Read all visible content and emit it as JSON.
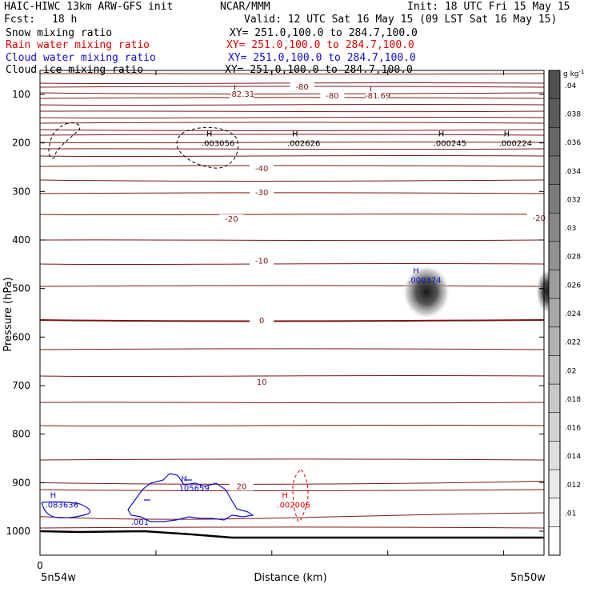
{
  "header": {
    "title_left": "HAIC-HIWC 13km ARW-GFS init",
    "title_mid": "NCAR/MMM",
    "init": "Init: 18 UTC Fri 15 May 15",
    "fcst_label": "Fcst:",
    "fcst_value": "18 h",
    "valid": "Valid: 12 UTC Sat 16 May 15 (09 LST Sat 16 May 15)"
  },
  "fields": [
    {
      "name": "Snow mixing ratio",
      "xy": "XY= 251.0,100.0 to 284.7,100.0",
      "color": "#000000"
    },
    {
      "name": "Rain water mixing ratio",
      "xy": "XY= 251.0,100.0 to 284.7,100.0",
      "color": "#e00000"
    },
    {
      "name": "Cloud water mixing ratio",
      "xy": "XY= 251.0,100.0 to 284.7,100.0",
      "color": "#1010d0"
    },
    {
      "name": "Cloud ice mixing ratio",
      "xy": "XY= 251.0,100.0 to 284.7,100.0",
      "color": "#000000"
    }
  ],
  "axes": {
    "ylabel": "Pressure (hPa)",
    "xlabel": "Distance (km)",
    "x_origin": "0",
    "x_left_label": "5n54w",
    "x_right_label": "5n50w"
  },
  "colorbar": {
    "units": "g kg",
    "units_sup": "-1",
    "ticks": [
      ".04",
      ".038",
      ".036",
      ".034",
      ".032",
      ".03",
      ".028",
      ".026",
      ".024",
      ".022",
      ".02",
      ".018",
      ".016",
      ".014",
      ".012",
      ".01"
    ]
  },
  "chart_data": {
    "type": "contour",
    "ylim": [
      1050,
      70
    ],
    "yticks": [
      100,
      200,
      300,
      400,
      500,
      600,
      700,
      800,
      900,
      1000
    ],
    "temperature_labels": [
      {
        "text": "-80",
        "x": 0.52,
        "p": 87
      },
      {
        "text": "-80",
        "x": 0.58,
        "p": 105
      },
      {
        "text": "-82.31",
        "x": 0.4,
        "p": 102,
        "marker": "L"
      },
      {
        "text": "-81.69",
        "x": 0.67,
        "p": 105,
        "marker": "L"
      },
      {
        "text": "-40",
        "x": 0.44,
        "p": 255
      },
      {
        "text": "-30",
        "x": 0.44,
        "p": 304
      },
      {
        "text": "-20",
        "x": 0.38,
        "p": 359
      },
      {
        "text": "-20",
        "x": 0.99,
        "p": 357
      },
      {
        "text": "-10",
        "x": 0.44,
        "p": 445
      },
      {
        "text": "0",
        "x": 0.44,
        "p": 568
      },
      {
        "text": "10",
        "x": 0.44,
        "p": 695
      },
      {
        "text": "20",
        "x": 0.4,
        "p": 910
      }
    ],
    "maxima": [
      {
        "marker": "H",
        "value": ".003056",
        "x": 0.33,
        "p": 200,
        "color": "#000000"
      },
      {
        "marker": "H",
        "value": ".002626",
        "x": 0.5,
        "p": 200,
        "color": "#000000"
      },
      {
        "marker": "H",
        "value": ".000245",
        "x": 0.79,
        "p": 200,
        "color": "#000000"
      },
      {
        "marker": "H",
        "value": ".000224",
        "x": 0.92,
        "p": 200,
        "color": "#000000"
      },
      {
        "marker": "H",
        "value": ".000374",
        "x": 0.74,
        "p": 482,
        "color": "#1010d0"
      },
      {
        "marker": "H",
        "value": ".083636",
        "x": 0.02,
        "p": 945,
        "color": "#1010d0"
      },
      {
        "marker": "H",
        "value": ".105659",
        "x": 0.28,
        "p": 910,
        "color": "#1010d0"
      },
      {
        "marker": "",
        "value": ".001",
        "x": 0.19,
        "p": 980,
        "color": "#1010d0"
      },
      {
        "marker": "H",
        "value": ".002006",
        "x": 0.48,
        "p": 945,
        "color": "#e00000"
      }
    ]
  }
}
